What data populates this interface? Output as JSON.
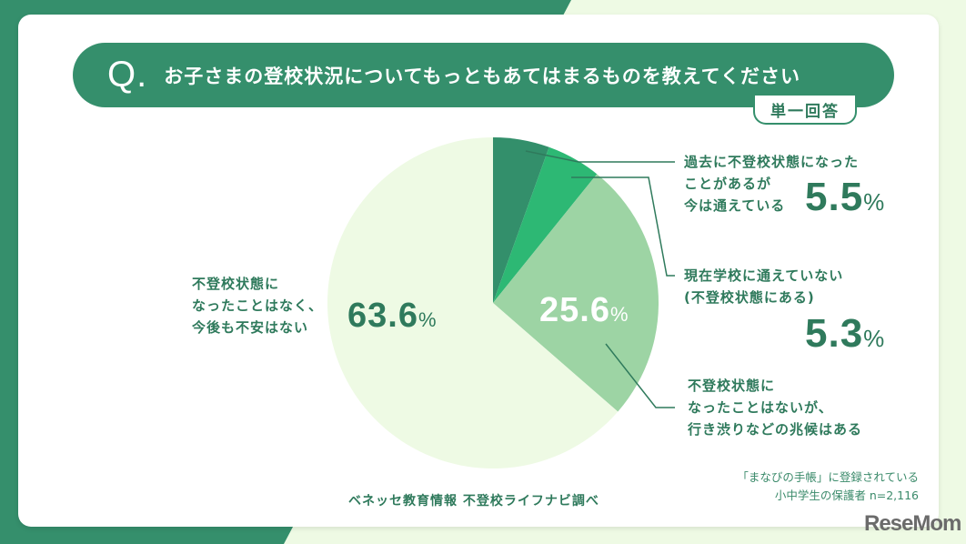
{
  "header": {
    "q_mark": "Q.",
    "question": "お子さまの登校状況についてもっともあてはまるものを教えてください",
    "answer_type": "単一回答"
  },
  "colors": {
    "brand_green": "#358f6c",
    "text_green": "#2f7a5c",
    "slice_1": "#338f6b",
    "slice_2": "#2db874",
    "slice_3": "#9dd4a4",
    "slice_4": "#eefae4",
    "page_bg": "#eefae4"
  },
  "chart_data": {
    "type": "pie",
    "title": "お子さまの登校状況についてもっともあてはまるものを教えてください",
    "subtitle": "単一回答",
    "start_angle": "12 o'clock, clockwise",
    "categories": [
      "過去に不登校状態になったことがあるが今は通えている",
      "現在学校に通えていない（不登校状態にある）",
      "不登校状態になったことはないが、行き渋りなどの兆候はある",
      "不登校状態になったことはなく、今後も不安はない"
    ],
    "values": [
      5.5,
      5.3,
      25.6,
      63.6
    ],
    "unit": "%",
    "source": "ベネッセ教育情報 不登校ライフナビ調べ",
    "sample": "「まなびの手帳」に登録されている小中学生の保護者 n=2,116"
  },
  "labels": {
    "s1": {
      "lines": [
        "過去に不登校状態になった",
        "ことがあるが",
        "今は通えている"
      ],
      "value": "5.5",
      "sym": "%"
    },
    "s2": {
      "lines": [
        "現在学校に通えていない",
        "(不登校状態にある)"
      ],
      "value": "5.3",
      "sym": "%"
    },
    "s3": {
      "lines": [
        "不登校状態に",
        "なったことはないが、",
        "行き渋りなどの兆候はある"
      ],
      "value": "25.6",
      "sym": "%"
    },
    "s4": {
      "lines": [
        "不登校状態に",
        "なったことはなく、",
        "今後も不安はない"
      ],
      "value": "63.6",
      "sym": "%"
    }
  },
  "footer": {
    "source": "ベネッセ教育情報  不登校ライフナビ調べ",
    "note_line1": "「まなびの手帳」に登録されている",
    "note_line2": "小中学生の保護者 n=2,116",
    "logo": "ReseMom"
  }
}
